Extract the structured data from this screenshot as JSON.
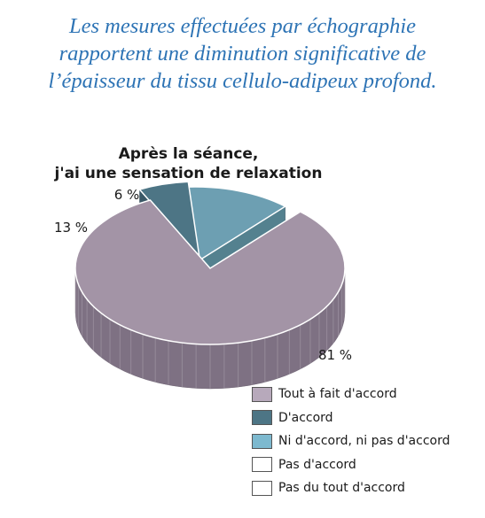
{
  "intro": {
    "lines": [
      "Les mesures effectuées par échographie",
      "rapportent une diminution significative de",
      "l’épaisseur du tissu cellulo-adipeux profond."
    ]
  },
  "chart_data": {
    "type": "pie",
    "title_lines": [
      "Après la séance,",
      "j'ai une sensation de relaxation"
    ],
    "slices": [
      {
        "label": "Tout à fait d'accord",
        "value": 81,
        "value_label": "81 %",
        "color": "#a394a6",
        "side_color": "#7e7183"
      },
      {
        "label": "D'accord",
        "value": 6,
        "value_label": "6 %",
        "color": "#4d7585",
        "side_color": "#3a5866"
      },
      {
        "label": "Ni d'accord, ni pas d'accord",
        "value": 13,
        "value_label": "13 %",
        "color": "#6d9fb2",
        "side_color": "#54818f"
      },
      {
        "label": "Pas d'accord",
        "value": 0,
        "value_label": "",
        "color": "#ffffff",
        "side_color": "#ffffff"
      },
      {
        "label": "Pas du tout d'accord",
        "value": 0,
        "value_label": "",
        "color": "#ffffff",
        "side_color": "#ffffff"
      }
    ],
    "legend_swatch_colors": [
      "#b7a9bb",
      "#4d7585",
      "#7db9cf",
      "#ffffff",
      "#ffffff"
    ],
    "style": "3d-exploded",
    "legend_placement": "bottom-right"
  }
}
